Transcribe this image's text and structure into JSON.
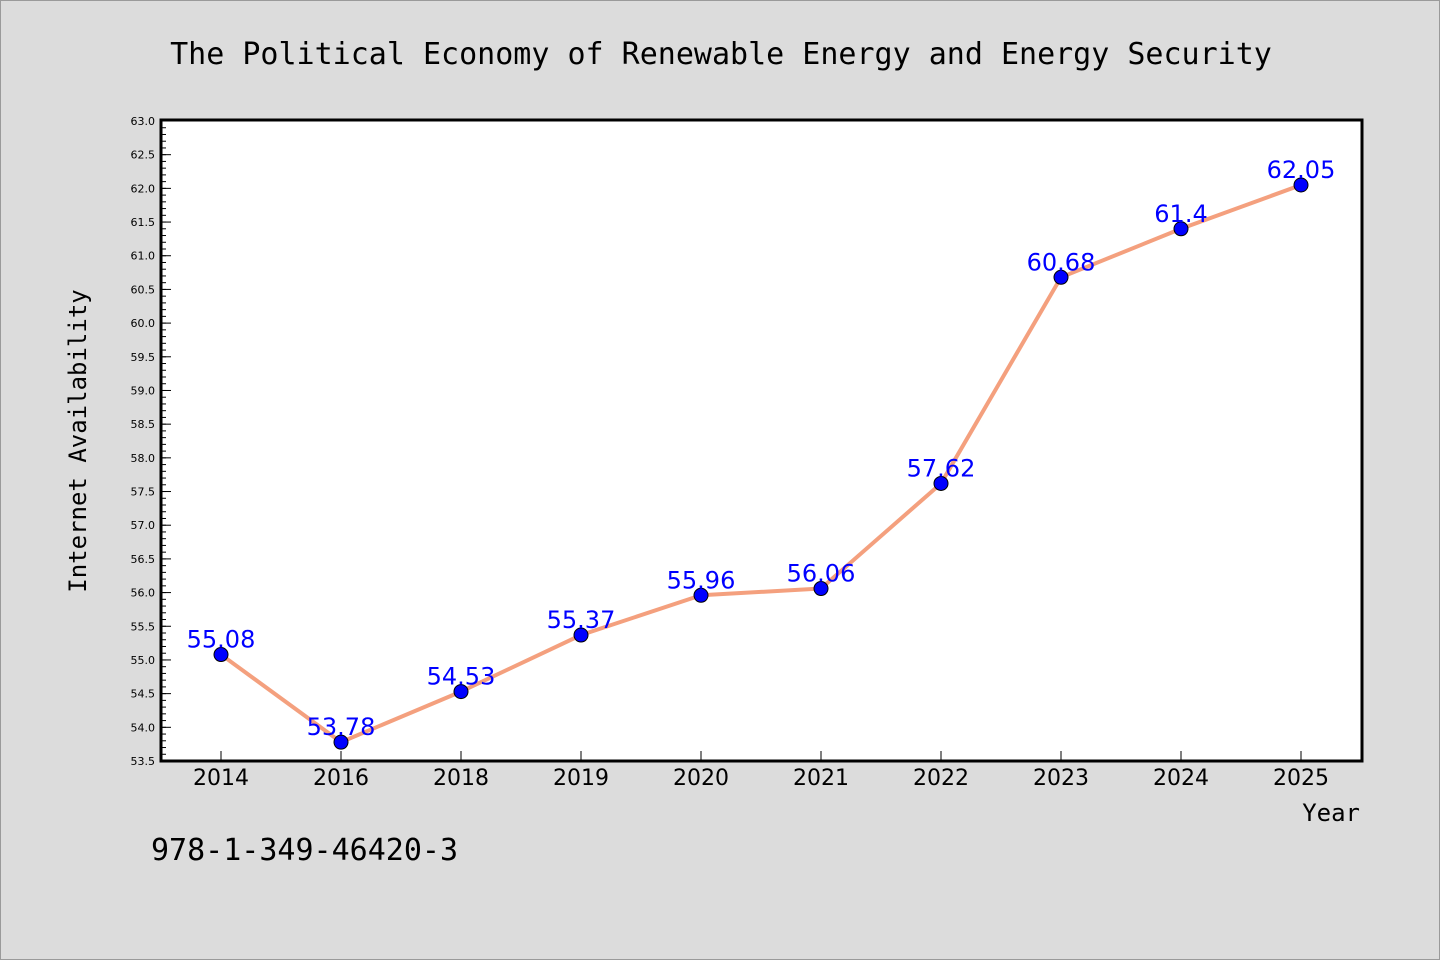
{
  "chart_data": {
    "type": "line",
    "title": "The Political Economy of Renewable Energy and Energy Security",
    "xlabel": "Year",
    "ylabel": "Internet Availability",
    "categories": [
      "2014",
      "2016",
      "2018",
      "2019",
      "2020",
      "2021",
      "2022",
      "2023",
      "2024",
      "2025"
    ],
    "series": [
      {
        "values": [
          55.08,
          53.78,
          54.53,
          55.37,
          55.96,
          56.06,
          57.62,
          60.68,
          61.4,
          62.05
        ],
        "labels": [
          "55.08",
          "53.78",
          "54.53",
          "55.37",
          "55.96",
          "56.06",
          "57.62",
          "60.68",
          "61.4",
          "62.05"
        ],
        "line_color": "#f4a07e",
        "marker_color": "#0000ff"
      }
    ],
    "ylim": [
      53.5,
      63.0
    ],
    "yticks": [
      "53.5",
      "54.0",
      "54.5",
      "55.0",
      "55.5",
      "56.0",
      "56.5",
      "57.0",
      "57.5",
      "58.0",
      "58.5",
      "59.0",
      "59.5",
      "60.0",
      "60.5",
      "61.0",
      "61.5",
      "62.0",
      "62.5",
      "63.0"
    ],
    "grid": false,
    "legend": "none"
  },
  "footer": {
    "isbn": "978-1-349-46420-3"
  },
  "colors": {
    "background": "#dcdcdc",
    "plot_background": "#ffffff",
    "line": "#f4a07e",
    "marker": "#0000ff",
    "label_text": "#0000ff"
  }
}
